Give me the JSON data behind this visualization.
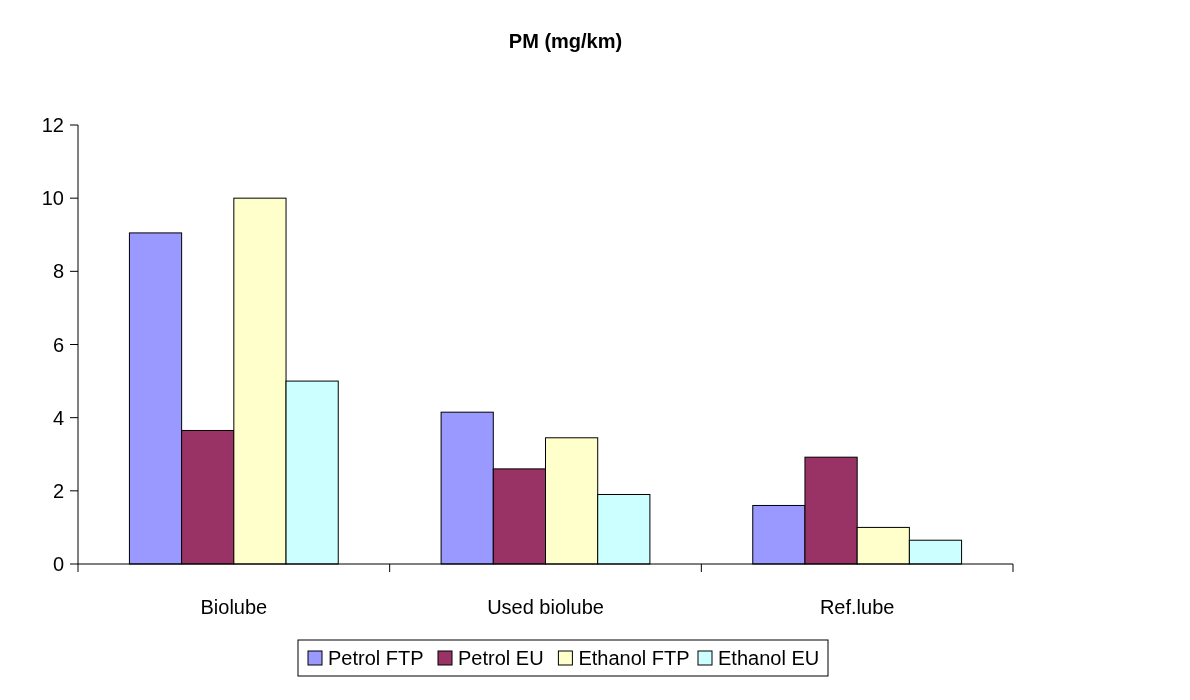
{
  "chart_data": {
    "type": "bar",
    "title": "PM (mg/km)",
    "categories": [
      "Biolube",
      "Used biolube",
      "Ref.lube"
    ],
    "series": [
      {
        "name": "Petrol FTP",
        "color": "#9999ff",
        "values": [
          9.05,
          4.15,
          1.6
        ]
      },
      {
        "name": "Petrol EU",
        "color": "#993366",
        "values": [
          3.65,
          2.6,
          2.92
        ]
      },
      {
        "name": "Ethanol FTP",
        "color": "#ffffcc",
        "values": [
          10.0,
          3.45,
          1.0
        ]
      },
      {
        "name": "Ethanol EU",
        "color": "#ccffff",
        "values": [
          5.0,
          1.9,
          0.65
        ]
      }
    ],
    "ylim": [
      0,
      12
    ],
    "yticks": [
      0,
      2,
      4,
      6,
      8,
      10,
      12
    ],
    "grid": false,
    "legend": "bottom"
  }
}
